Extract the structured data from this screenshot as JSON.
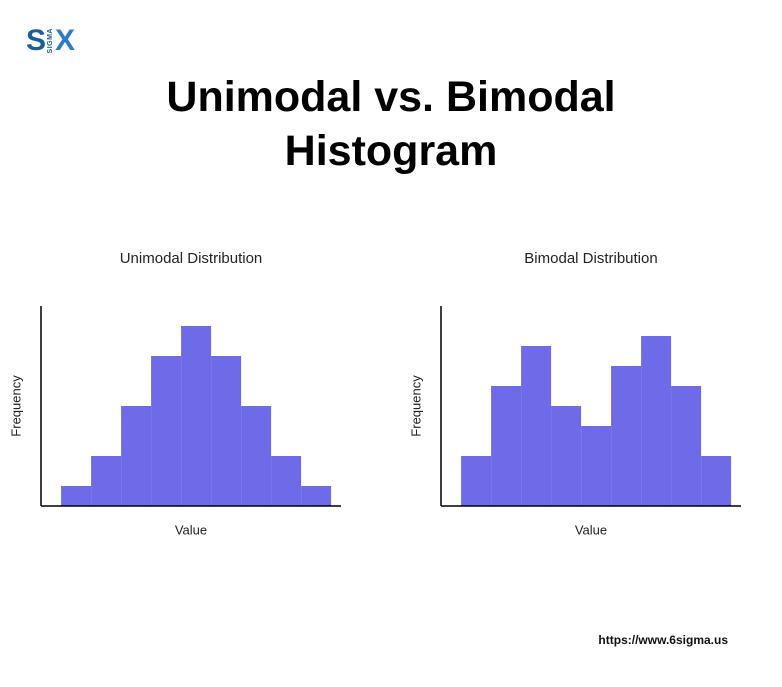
{
  "logo": {
    "left": "S",
    "middle": "SIGMA",
    "right": "X"
  },
  "title": "Unimodal vs. Bimodal Histogram",
  "footer": "https://www.6sigma.us",
  "chart_data": [
    {
      "type": "histogram",
      "title": "Unimodal Distribution",
      "x_label": "Value",
      "y_label": "Frequency",
      "bins": [
        0,
        1,
        2,
        3,
        4,
        5,
        6,
        7,
        8,
        9
      ],
      "values": [
        1,
        2.5,
        5,
        7.5,
        9,
        7.5,
        5,
        2.5,
        1
      ],
      "xlim": [
        -0.67,
        9.33
      ],
      "ylim": [
        0,
        10
      ],
      "color": "#6f6ae8"
    },
    {
      "type": "histogram",
      "title": "Bimodal Distribution",
      "x_label": "Value",
      "y_label": "Frequency",
      "bins": [
        0,
        1,
        2,
        3,
        4,
        5,
        6,
        7,
        8,
        9
      ],
      "values": [
        2.5,
        6,
        8,
        5,
        4,
        7,
        8.5,
        6,
        2.5
      ],
      "xlim": [
        -0.67,
        9.33
      ],
      "ylim": [
        0,
        10
      ],
      "color": "#6f6ae8"
    }
  ]
}
